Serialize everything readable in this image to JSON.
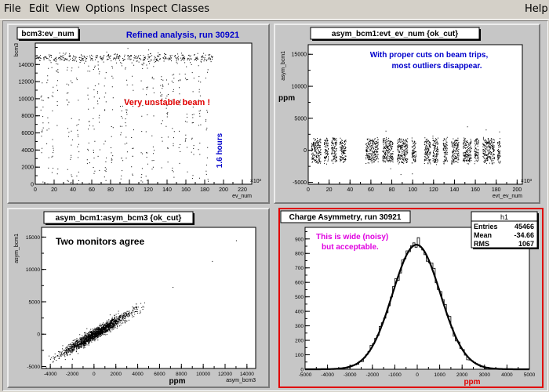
{
  "menu": {
    "file": "File",
    "edit": "Edit",
    "view": "View",
    "options": "Options",
    "inspect": "Inspect",
    "classes": "Classes",
    "help": "Help"
  },
  "colors": {
    "blue_text": "#0000cc",
    "red_text": "#e00000",
    "magenta_text": "#e000e0",
    "selected_border": "#e00000"
  },
  "chart_data": [
    {
      "type": "scatter",
      "title": "bcm3:ev_num",
      "annotation_title": "Refined analysis, run 30921",
      "annotation_center": "Very unstable beam !",
      "annotation_side": "1.6 hours",
      "xlabel": "ev_num",
      "ylabel": "bcm3",
      "x_exponent": "×10³",
      "xlim": [
        0,
        230
      ],
      "ylim": [
        0,
        16500
      ],
      "xticks": [
        0,
        20,
        40,
        60,
        80,
        100,
        120,
        140,
        160,
        180,
        200,
        220
      ],
      "yticks": [
        0,
        2000,
        4000,
        6000,
        8000,
        10000,
        12000,
        14000
      ],
      "plateau_level": 14800,
      "trips_x": [
        7,
        13,
        18,
        23,
        34,
        38,
        45,
        56,
        62,
        67,
        74,
        81,
        91,
        96,
        103,
        113,
        118,
        125,
        134,
        140,
        146,
        153,
        160,
        167,
        174,
        182
      ],
      "data_xmax": 188
    },
    {
      "type": "scatter",
      "title": "asym_bcm1:evt_ev_num {ok_cut}",
      "annotation": [
        "With proper cuts on beam trips,",
        "most outliers disappear."
      ],
      "xlabel": "evt_ev_num",
      "ylabel": "asym_bcm1",
      "ylabel_unit": "ppm",
      "x_exponent": "×10³",
      "xlim": [
        0,
        205
      ],
      "ylim": [
        -5300,
        16500
      ],
      "xticks": [
        0,
        20,
        40,
        60,
        80,
        100,
        120,
        140,
        160,
        180,
        200
      ],
      "yticks": [
        -5000,
        0,
        5000,
        10000,
        15000
      ],
      "band_halfwidth": 2200,
      "segments": [
        [
          3,
          12
        ],
        [
          15,
          19
        ],
        [
          22,
          27
        ],
        [
          30,
          36
        ],
        [
          55,
          67
        ],
        [
          71,
          81
        ],
        [
          85,
          95
        ],
        [
          99,
          103
        ],
        [
          111,
          117
        ],
        [
          119,
          124
        ],
        [
          129,
          133
        ],
        [
          137,
          144
        ],
        [
          148,
          156
        ],
        [
          159,
          163
        ],
        [
          167,
          178
        ],
        [
          181,
          184
        ]
      ],
      "data_xmax": 187
    },
    {
      "type": "scatter",
      "title": "asym_bcm1:asym_bcm3 {ok_cut}",
      "annotation": "Two monitors agree",
      "xlabel": "asym_bcm3",
      "xlabel_unit": "ppm",
      "ylabel": "asym_bcm1",
      "xlim": [
        -4800,
        14800
      ],
      "ylim": [
        -5300,
        16500
      ],
      "xticks": [
        -4000,
        -2000,
        0,
        2000,
        4000,
        6000,
        8000,
        10000,
        12000,
        14000
      ],
      "yticks": [
        -5000,
        0,
        5000,
        10000,
        15000
      ],
      "correlation_slope": 1.0,
      "core_range": [
        -3200,
        3500
      ],
      "outliers": [
        [
          13000,
          14500
        ],
        [
          10800,
          11300
        ],
        [
          7200,
          7300
        ],
        [
          -2000,
          -3800
        ]
      ]
    },
    {
      "type": "bar",
      "title": "Charge Asymmetry, run 30921",
      "annotation": [
        "This is wide (noisy)",
        "but acceptable."
      ],
      "xlabel": "ppm",
      "ylabel": "",
      "xlim": [
        -5000,
        5000
      ],
      "ylim": [
        0,
        980
      ],
      "xticks": [
        -5000,
        -4000,
        -3000,
        -2000,
        -1000,
        0,
        1000,
        2000,
        3000,
        4000,
        5000
      ],
      "yticks": [
        0,
        100,
        200,
        300,
        400,
        500,
        600,
        700,
        800,
        900
      ],
      "stats": {
        "name": "h1",
        "rows": [
          [
            "Entries",
            "45466"
          ],
          [
            "Mean",
            "-34.66"
          ],
          [
            "RMS",
            "1067"
          ]
        ]
      },
      "fit": {
        "type": "gaussian",
        "amplitude": 860,
        "mean": -34.66,
        "sigma": 1067
      }
    }
  ]
}
